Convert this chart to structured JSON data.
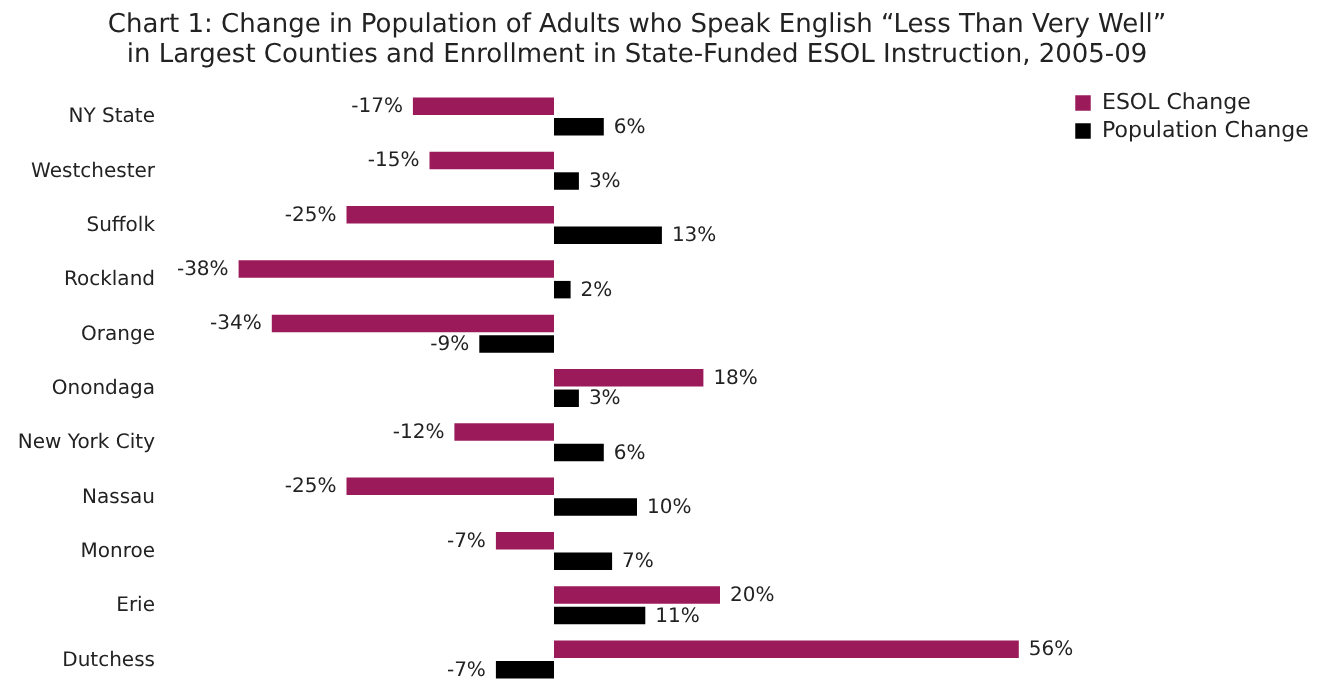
{
  "chart_data": {
    "type": "bar",
    "orientation": "horizontal",
    "title": "Chart 1: Change in Population of Adults who Speak English “Less Than Very Well” in Largest Counties and Enrollment in State-Funded ESOL Instruction, 2005-09",
    "categories": [
      "NY State",
      "Westchester",
      "Suffolk",
      "Rockland",
      "Orange",
      "Onondaga",
      "New York City",
      "Nassau",
      "Monroe",
      "Erie",
      "Dutchess"
    ],
    "series": [
      {
        "name": "ESOL Change",
        "color": "#9b1b5a",
        "values": [
          -17,
          -15,
          -25,
          -38,
          -34,
          18,
          -12,
          -25,
          -7,
          20,
          56
        ],
        "value_labels": [
          "-17%",
          "-15%",
          "-25%",
          "-38%",
          "-34%",
          "18%",
          "-12%",
          "-25%",
          "-7%",
          "20%",
          "56%"
        ]
      },
      {
        "name": "Population Change",
        "color": "#000000",
        "values": [
          6,
          3,
          13,
          2,
          -9,
          3,
          6,
          10,
          7,
          11,
          -7
        ],
        "value_labels": [
          "6%",
          "3%",
          "13%",
          "2%",
          "-9%",
          "3%",
          "6%",
          "10%",
          "7%",
          "11%",
          "-7%"
        ]
      }
    ],
    "legend": "right"
  }
}
